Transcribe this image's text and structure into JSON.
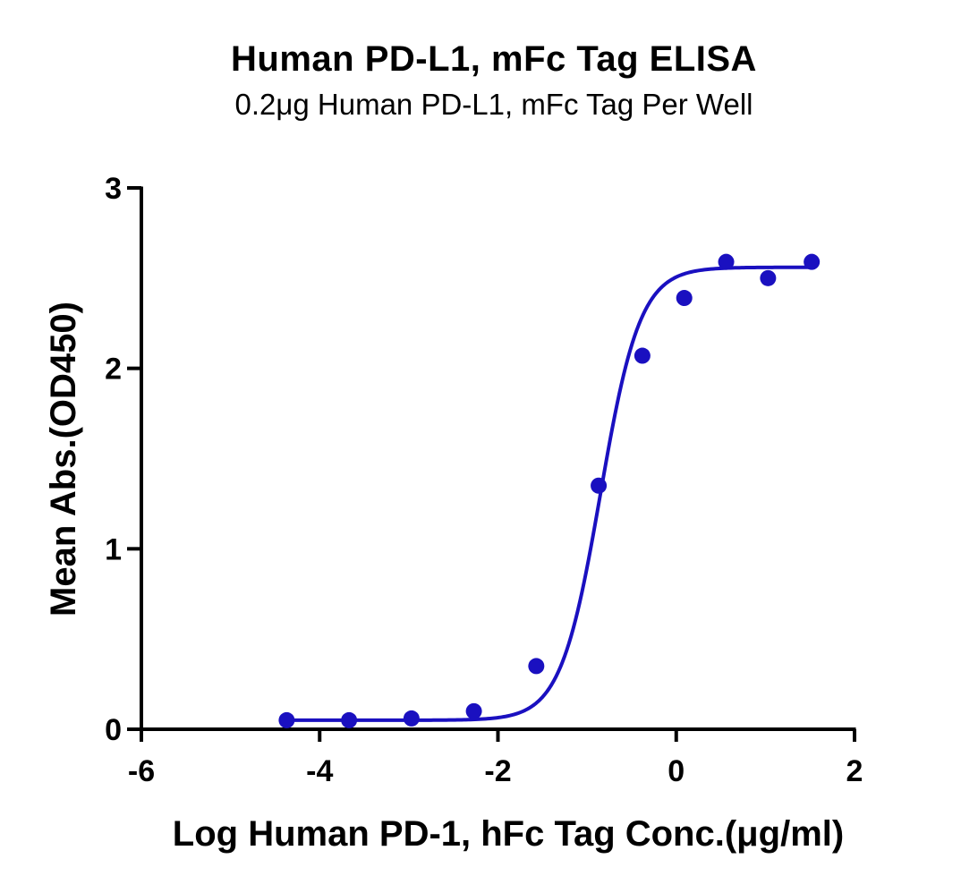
{
  "chart_data": {
    "type": "scatter",
    "title": "Human PD-L1, mFc Tag ELISA",
    "subtitle": "0.2μg Human PD-L1, mFc Tag Per Well",
    "xlabel": "Log Human PD-1, hFc Tag Conc.(μg/ml)",
    "ylabel": "Mean Abs.(OD450)",
    "xlim": [
      -6,
      2
    ],
    "ylim": [
      0,
      3
    ],
    "xticks": [
      "-6",
      "-4",
      "-2",
      "0",
      "2"
    ],
    "yticks": [
      "0",
      "1",
      "2",
      "3"
    ],
    "series": [
      {
        "points": [
          {
            "x": -4.37,
            "y": 0.05
          },
          {
            "x": -3.67,
            "y": 0.05
          },
          {
            "x": -2.97,
            "y": 0.06
          },
          {
            "x": -2.27,
            "y": 0.1
          },
          {
            "x": -1.57,
            "y": 0.35
          },
          {
            "x": -0.87,
            "y": 1.35
          },
          {
            "x": -0.38,
            "y": 2.07
          },
          {
            "x": 0.09,
            "y": 2.39
          },
          {
            "x": 0.56,
            "y": 2.59
          },
          {
            "x": 1.03,
            "y": 2.5
          },
          {
            "x": 1.52,
            "y": 2.59
          }
        ],
        "fit": {
          "model": "4PL",
          "bottom": 0.05,
          "top": 2.56,
          "logEC50": -0.85,
          "hill": 1.95,
          "xrange": [
            -4.37,
            1.52
          ]
        }
      }
    ],
    "colors": {
      "series": "#1a10c0",
      "axis": "#000000"
    },
    "grid": false
  }
}
